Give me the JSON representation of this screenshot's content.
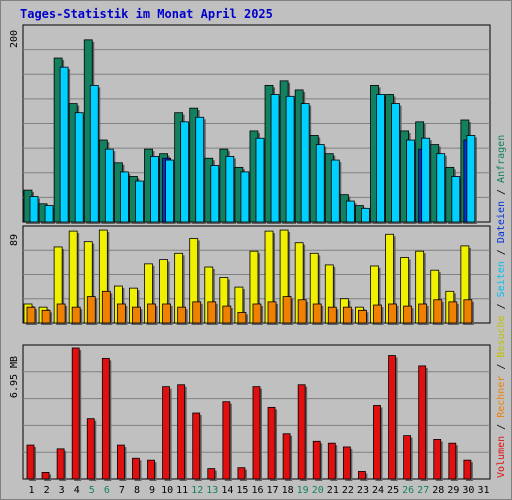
{
  "colors": {
    "background": "#C0C0C0",
    "title": "#0000CC",
    "anfragen": "#138060",
    "dateien": "#0030D8",
    "seiten": "#00D0FF",
    "besuche": "#F0F000",
    "rechner": "#F08000",
    "volumen": "#E01010",
    "separator": "#000000",
    "weekend_label": "#138060"
  },
  "chart_data": {
    "type": "bar",
    "title": "Tages-Statistik im Monat April 2025",
    "categories": [
      "1",
      "2",
      "3",
      "4",
      "5",
      "6",
      "7",
      "8",
      "9",
      "10",
      "11",
      "12",
      "13",
      "14",
      "15",
      "16",
      "17",
      "18",
      "19",
      "20",
      "21",
      "22",
      "23",
      "24",
      "25",
      "26",
      "27",
      "28",
      "29",
      "30",
      "31"
    ],
    "weekend_days": [
      "5",
      "6",
      "12",
      "13",
      "19",
      "20",
      "26",
      "27"
    ],
    "panels": [
      {
        "id": "top",
        "scale_label": "200",
        "ymax": 213,
        "series": [
          {
            "name": "Anfragen",
            "values": [
              35,
              20,
              180,
              130,
              200,
              90,
              65,
              50,
              80,
              75,
              120,
              125,
              70,
              80,
              60,
              100,
              150,
              155,
              145,
              95,
              75,
              30,
              18,
              150,
              140,
              100,
              110,
              85,
              60,
              112,
              0
            ]
          },
          {
            "name": "Dateien",
            "values": [
              0,
              0,
              0,
              0,
              0,
              0,
              0,
              0,
              0,
              70,
              0,
              0,
              0,
              0,
              0,
              0,
              0,
              0,
              0,
              0,
              0,
              0,
              0,
              0,
              0,
              0,
              80,
              0,
              0,
              90,
              0
            ]
          },
          {
            "name": "Seiten",
            "values": [
              28,
              18,
              170,
              120,
              150,
              80,
              55,
              45,
              72,
              68,
              110,
              115,
              62,
              72,
              55,
              92,
              140,
              138,
              130,
              85,
              68,
              23,
              15,
              140,
              130,
              90,
              92,
              75,
              50,
              95,
              0
            ]
          }
        ]
      },
      {
        "id": "middle",
        "scale_label": "89",
        "ymax": 89,
        "series": [
          {
            "name": "Besuche",
            "values": [
              18,
              15,
              72,
              87,
              77,
              88,
              35,
              33,
              56,
              60,
              66,
              80,
              53,
              43,
              34,
              68,
              87,
              88,
              76,
              66,
              55,
              23,
              15,
              54,
              84,
              62,
              68,
              50,
              30,
              73,
              0
            ]
          },
          {
            "name": "Rechner",
            "values": [
              15,
              12,
              18,
              15,
              25,
              30,
              18,
              15,
              18,
              18,
              15,
              20,
              20,
              16,
              10,
              18,
              20,
              25,
              22,
              18,
              15,
              15,
              12,
              17,
              18,
              16,
              18,
              22,
              20,
              22,
              0
            ]
          }
        ]
      },
      {
        "id": "bottom",
        "scale_label": "6.95 MB",
        "ymax": 6.95,
        "series": [
          {
            "name": "Volumen",
            "values": [
              1.8,
              0.35,
              1.6,
              6.95,
              3.2,
              6.4,
              1.8,
              1.1,
              1.0,
              4.9,
              5.0,
              3.5,
              0.55,
              4.1,
              0.6,
              4.9,
              3.8,
              2.4,
              5.0,
              2.0,
              1.9,
              1.7,
              0.4,
              3.9,
              6.55,
              2.3,
              6.0,
              2.1,
              1.9,
              1.0,
              0
            ]
          }
        ]
      }
    ],
    "legend": {
      "placement": "right",
      "items": [
        {
          "text": "Volumen",
          "color": "#E01010"
        },
        {
          "text": " / ",
          "color": "#000000"
        },
        {
          "text": "Rechner",
          "color": "#F08000"
        },
        {
          "text": " / ",
          "color": "#000000"
        },
        {
          "text": "Besuche",
          "color": "#C0C000"
        },
        {
          "text": " / ",
          "color": "#000000"
        },
        {
          "text": "Seiten",
          "color": "#00C0F0"
        },
        {
          "text": " / ",
          "color": "#000000"
        },
        {
          "text": "Dateien",
          "color": "#0030D8"
        },
        {
          "text": " / ",
          "color": "#000000"
        },
        {
          "text": "Anfragen",
          "color": "#138060"
        }
      ]
    }
  }
}
